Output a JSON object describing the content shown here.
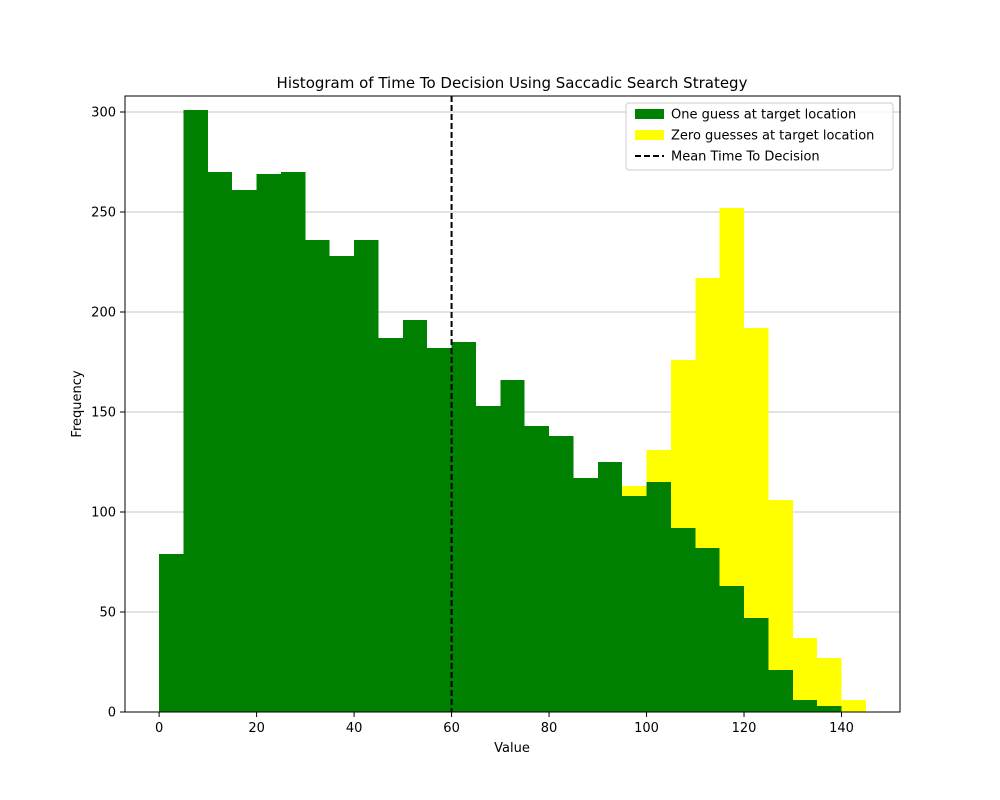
{
  "chart_data": {
    "type": "bar",
    "title": "Histogram of Time To Decision Using Saccadic Search Strategy",
    "xlabel": "Value",
    "ylabel": "Frequency",
    "xlim": [
      -7,
      152
    ],
    "ylim": [
      0,
      308
    ],
    "x_ticks": [
      0,
      20,
      40,
      60,
      80,
      100,
      120,
      140
    ],
    "y_ticks": [
      0,
      50,
      100,
      150,
      200,
      250,
      300
    ],
    "grid": "y",
    "legend_position": "upper right",
    "bin_width": 5,
    "bin_starts": [
      0,
      5,
      10,
      15,
      20,
      25,
      30,
      35,
      40,
      45,
      50,
      55,
      60,
      65,
      70,
      75,
      80,
      85,
      90,
      95,
      100,
      105,
      110,
      115,
      120,
      125,
      130,
      135,
      140
    ],
    "series": [
      {
        "name": "One guess at target location",
        "color": "#008000",
        "values": [
          79,
          301,
          270,
          261,
          269,
          270,
          236,
          228,
          236,
          187,
          196,
          182,
          185,
          153,
          166,
          143,
          138,
          117,
          125,
          108,
          115,
          92,
          82,
          63,
          47,
          21,
          6,
          3,
          0
        ]
      },
      {
        "name": "Zero guesses at target location",
        "color": "#ffff00",
        "values": [
          0,
          0,
          0,
          0,
          0,
          0,
          0,
          0,
          0,
          0,
          0,
          0,
          0,
          0,
          0,
          0,
          0,
          0,
          0,
          113,
          131,
          176,
          217,
          252,
          192,
          106,
          37,
          27,
          6
        ]
      }
    ],
    "mean_line": {
      "name": "Mean Time To Decision",
      "x": 60,
      "color": "#000000"
    }
  }
}
